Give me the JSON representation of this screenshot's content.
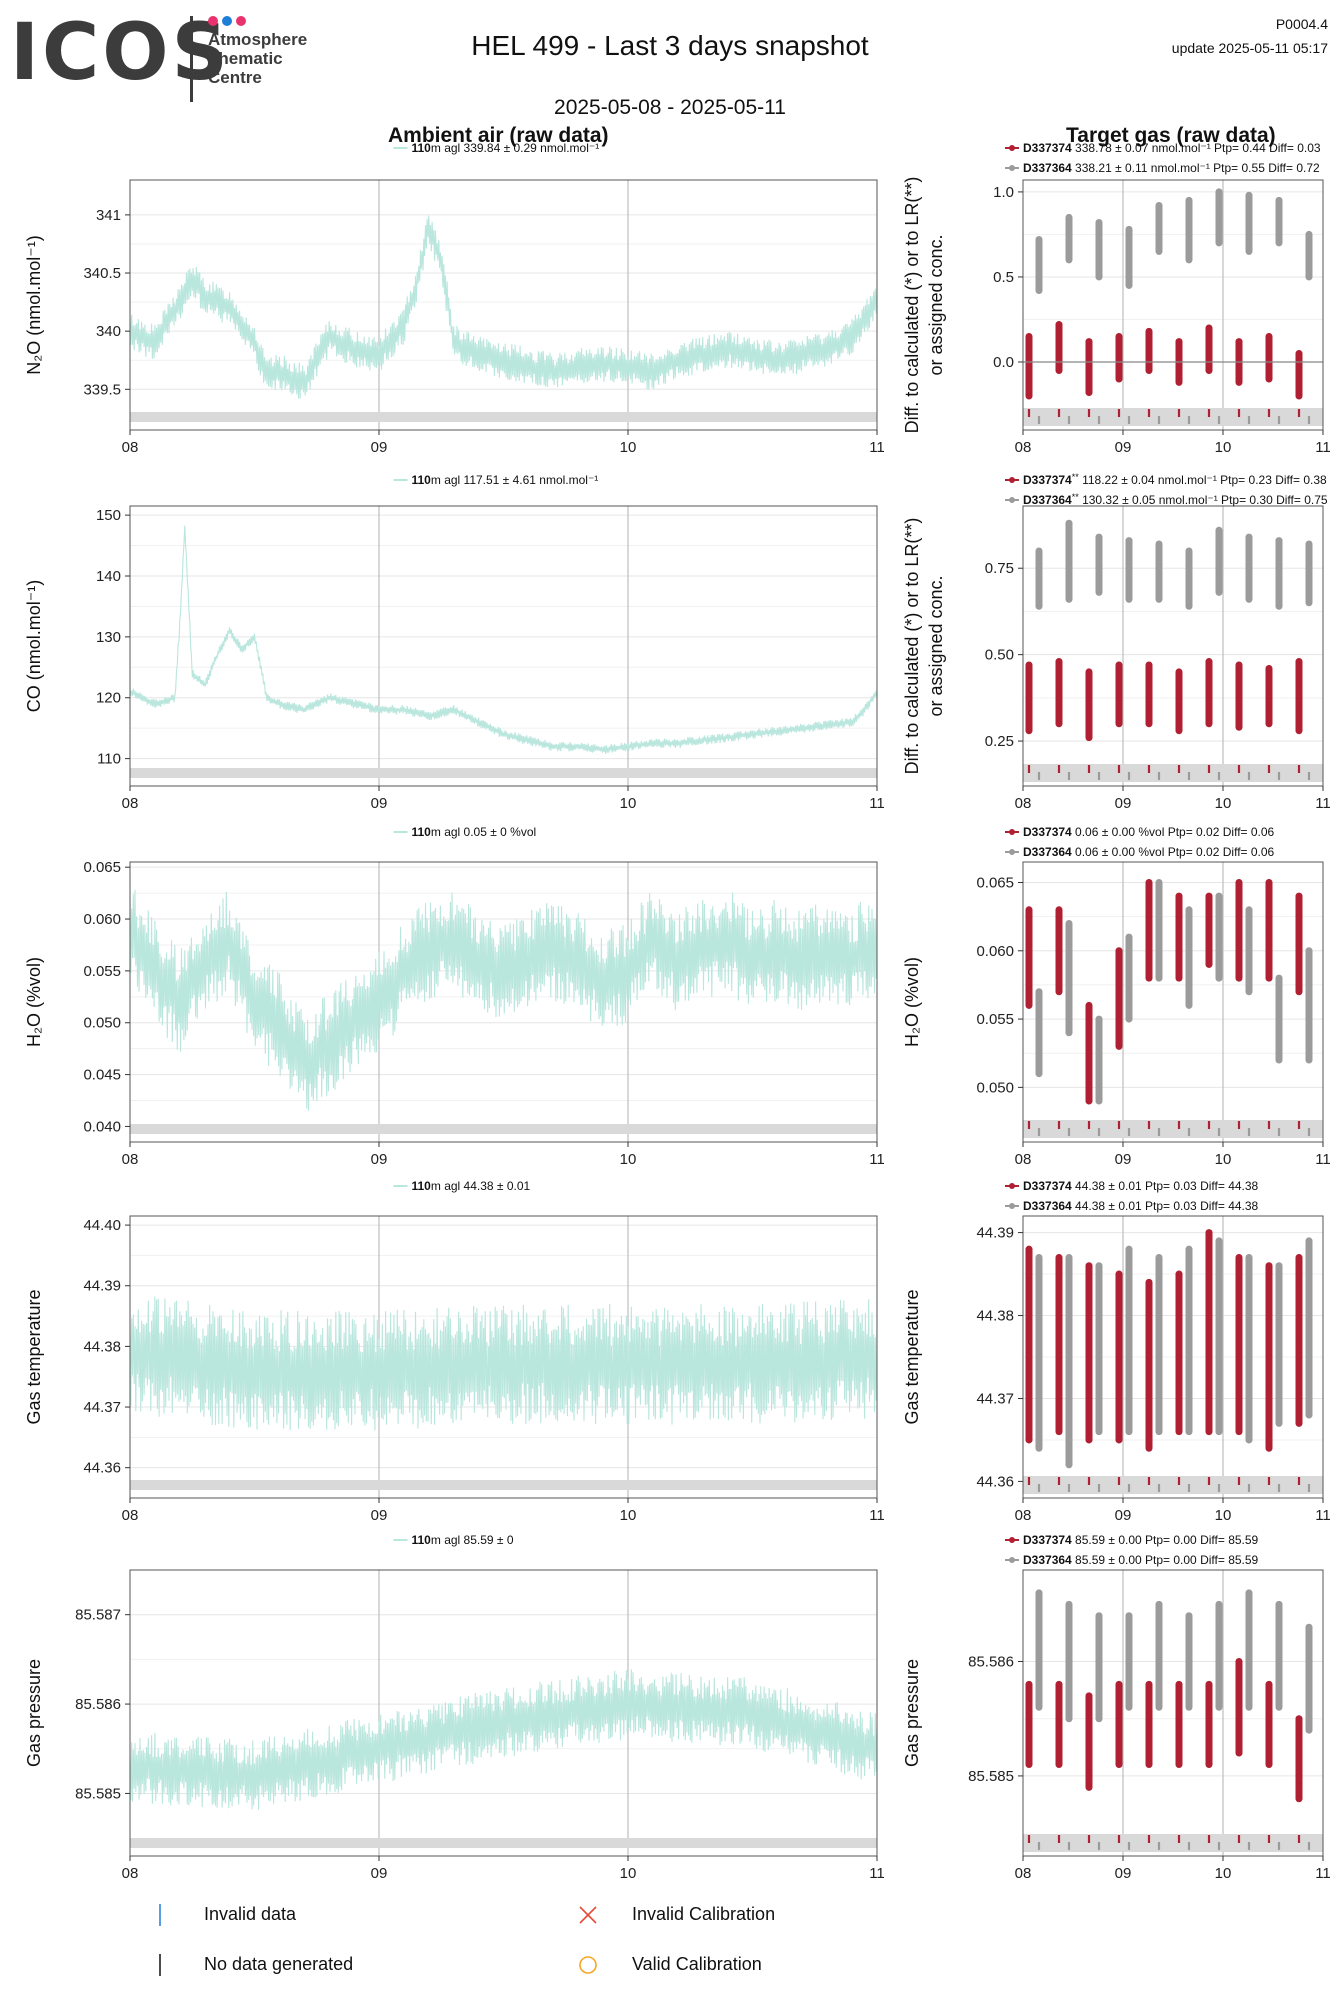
{
  "header": {
    "logo_text": "ICOS",
    "logo_subtitle_lines": [
      "Atmosphere",
      "Thematic",
      "Centre"
    ],
    "logo_dot_colors": [
      "#e8336e",
      "#1f7fd8",
      "#e8336e"
    ],
    "title": "HEL 499 - Last 3 days snapshot",
    "date_range": "2025-05-08 - 2025-05-11",
    "product_code": "P0004.4",
    "update_text": "update  2025-05-11 05:17",
    "left_column_title": "Ambient air (raw data)",
    "right_column_title": "Target gas (raw data)"
  },
  "colors": {
    "ambient": "#b9e6dd",
    "target1": "#b01f32",
    "target2": "#9b9b9b",
    "flag_band": "#d9d9d9",
    "frame": "#555555",
    "grid": "#e6e6e6",
    "vgrid": "#bdbdbd"
  },
  "footer_legend": {
    "invalid_data": "Invalid data",
    "no_data": "No data generated",
    "invalid_cal": "Invalid Calibration",
    "valid_cal": "Valid Calibration"
  },
  "chart_data": [
    {
      "id": "n2o-ambient",
      "type": "line",
      "ylabel": "N₂O (nmol.mol⁻¹)",
      "xlabel": "",
      "xticks": [
        "08",
        "09",
        "10",
        "11"
      ],
      "xlim": [
        0,
        3
      ],
      "ylim": [
        339.15,
        341.3
      ],
      "yticks": [
        339.5,
        340.0,
        340.5,
        341.0
      ],
      "legend": [
        {
          "bold": "110",
          "text": "m agl 339.84 ± 0.29 nmol.mol⁻¹"
        }
      ],
      "series": [
        {
          "name": "110m agl",
          "x": [
            0,
            0.1,
            0.2,
            0.25,
            0.3,
            0.4,
            0.5,
            0.55,
            0.6,
            0.7,
            0.8,
            0.9,
            1.0,
            1.1,
            1.15,
            1.2,
            1.25,
            1.3,
            1.4,
            1.5,
            1.6,
            1.7,
            1.8,
            1.9,
            2.0,
            2.1,
            2.2,
            2.3,
            2.4,
            2.5,
            2.6,
            2.7,
            2.8,
            2.9,
            2.95,
            3.0
          ],
          "y": [
            340.0,
            339.9,
            340.25,
            340.45,
            340.3,
            340.2,
            339.9,
            339.6,
            339.65,
            339.55,
            339.95,
            339.85,
            339.8,
            340.05,
            340.4,
            340.9,
            340.6,
            339.9,
            339.8,
            339.75,
            339.7,
            339.65,
            339.7,
            339.72,
            339.7,
            339.65,
            339.75,
            339.8,
            339.85,
            339.8,
            339.75,
            339.8,
            339.85,
            339.95,
            340.1,
            340.3
          ],
          "amplitude": 0.16
        }
      ]
    },
    {
      "id": "n2o-target",
      "type": "scatter",
      "ylabel": "Diff. to calculated (*) or to LR(**)\nor assigned conc.",
      "xlabel": "",
      "xticks": [
        "08",
        "09",
        "10",
        "11"
      ],
      "xlim": [
        0,
        3
      ],
      "ylim": [
        -0.4,
        1.07
      ],
      "yticks": [
        0.0,
        0.5,
        1.0
      ],
      "ytick_labels": [
        "0.0",
        "0.5",
        "1.0"
      ],
      "zero_line": true,
      "legend": [
        {
          "bold": "D337374",
          "text": " 338.78 ± 0.07 nmol.mol⁻¹ Ptp= 0.44 Diff= 0.03"
        },
        {
          "bold": "D337364",
          "text": " 338.21 ± 0.11 nmol.mol⁻¹ Ptp= 0.55 Diff= 0.72"
        }
      ],
      "series": [
        {
          "name": "D337374",
          "x": [
            0.06,
            0.36,
            0.66,
            0.96,
            1.26,
            1.56,
            1.86,
            2.16,
            2.46,
            2.76
          ],
          "low": [
            -0.2,
            -0.05,
            -0.18,
            -0.1,
            -0.05,
            -0.12,
            -0.05,
            -0.12,
            -0.1,
            -0.2
          ],
          "high": [
            0.15,
            0.22,
            0.12,
            0.15,
            0.18,
            0.12,
            0.2,
            0.12,
            0.15,
            0.05
          ]
        },
        {
          "name": "D337364",
          "x": [
            0.16,
            0.46,
            0.76,
            1.06,
            1.36,
            1.66,
            1.96,
            2.26,
            2.56,
            2.86
          ],
          "low": [
            0.42,
            0.6,
            0.5,
            0.45,
            0.65,
            0.6,
            0.7,
            0.65,
            0.7,
            0.5
          ],
          "high": [
            0.72,
            0.85,
            0.82,
            0.78,
            0.92,
            0.95,
            1.0,
            0.98,
            0.95,
            0.75
          ]
        }
      ]
    },
    {
      "id": "co-ambient",
      "type": "line",
      "ylabel": "CO (nmol.mol⁻¹)",
      "xlabel": "",
      "xticks": [
        "08",
        "09",
        "10",
        "11"
      ],
      "xlim": [
        0,
        3
      ],
      "ylim": [
        105.5,
        151.5
      ],
      "yticks": [
        110,
        120,
        130,
        140,
        150
      ],
      "legend": [
        {
          "bold": "110",
          "text": "m agl 117.51 ± 4.61 nmol.mol⁻¹"
        }
      ],
      "series": [
        {
          "name": "110m agl",
          "x": [
            0,
            0.1,
            0.18,
            0.2,
            0.22,
            0.25,
            0.3,
            0.35,
            0.4,
            0.45,
            0.5,
            0.55,
            0.6,
            0.7,
            0.8,
            0.9,
            1.0,
            1.1,
            1.2,
            1.3,
            1.4,
            1.5,
            1.6,
            1.7,
            1.8,
            1.9,
            2.0,
            2.1,
            2.2,
            2.3,
            2.4,
            2.5,
            2.6,
            2.7,
            2.8,
            2.9,
            2.95,
            3.0
          ],
          "y": [
            121,
            119,
            120,
            132,
            148,
            124,
            122,
            127,
            131,
            128,
            130,
            120,
            119,
            118,
            120,
            119,
            118,
            118,
            117,
            118,
            116,
            114,
            113,
            112,
            112,
            111.5,
            112,
            112.5,
            112.5,
            113,
            113.5,
            114,
            114.5,
            115,
            115.5,
            116,
            118,
            121
          ],
          "amplitude": 0.8
        }
      ]
    },
    {
      "id": "co-target",
      "type": "scatter",
      "ylabel": "Diff. to calculated (*) or to LR(**)\nor assigned conc.",
      "xlabel": "",
      "xticks": [
        "08",
        "09",
        "10",
        "11"
      ],
      "xlim": [
        0,
        3
      ],
      "ylim": [
        0.12,
        0.93
      ],
      "yticks": [
        0.25,
        0.5,
        0.75
      ],
      "ytick_labels": [
        "0.25",
        "0.50",
        "0.75"
      ],
      "legend": [
        {
          "bold": "D337374",
          "sup": "**",
          "text": " 118.22 ± 0.04 nmol.mol⁻¹ Ptp= 0.23 Diff= 0.38"
        },
        {
          "bold": "D337364",
          "sup": "**",
          "text": " 130.32 ± 0.05 nmol.mol⁻¹ Ptp= 0.30 Diff= 0.75"
        }
      ],
      "series": [
        {
          "name": "D337374",
          "x": [
            0.06,
            0.36,
            0.66,
            0.96,
            1.26,
            1.56,
            1.86,
            2.16,
            2.46,
            2.76
          ],
          "low": [
            0.28,
            0.3,
            0.26,
            0.3,
            0.3,
            0.28,
            0.3,
            0.29,
            0.3,
            0.28
          ],
          "high": [
            0.47,
            0.48,
            0.45,
            0.47,
            0.47,
            0.45,
            0.48,
            0.47,
            0.46,
            0.48
          ]
        },
        {
          "name": "D337364",
          "x": [
            0.16,
            0.46,
            0.76,
            1.06,
            1.36,
            1.66,
            1.96,
            2.26,
            2.56,
            2.86
          ],
          "low": [
            0.64,
            0.66,
            0.68,
            0.66,
            0.66,
            0.64,
            0.68,
            0.66,
            0.64,
            0.65
          ],
          "high": [
            0.8,
            0.88,
            0.84,
            0.83,
            0.82,
            0.8,
            0.86,
            0.84,
            0.83,
            0.82
          ]
        }
      ]
    },
    {
      "id": "h2o-ambient",
      "type": "line",
      "ylabel": "H₂O (%vol)",
      "xlabel": "",
      "xticks": [
        "08",
        "09",
        "10",
        "11"
      ],
      "xlim": [
        0,
        3
      ],
      "ylim": [
        0.0385,
        0.0655
      ],
      "yticks": [
        0.04,
        0.045,
        0.05,
        0.055,
        0.06,
        0.065
      ],
      "ytick_labels": [
        "0.040",
        "0.045",
        "0.050",
        "0.055",
        "0.060",
        "0.065"
      ],
      "legend": [
        {
          "bold": "110",
          "text": "m agl 0.05 ± 0 %vol"
        }
      ],
      "series": [
        {
          "name": "110m agl",
          "x": [
            0,
            0.1,
            0.2,
            0.3,
            0.4,
            0.5,
            0.6,
            0.7,
            0.8,
            0.9,
            1.0,
            1.1,
            1.2,
            1.3,
            1.4,
            1.5,
            1.6,
            1.7,
            1.8,
            1.9,
            2.0,
            2.1,
            2.2,
            2.3,
            2.4,
            2.5,
            2.6,
            2.7,
            2.8,
            2.9,
            3.0
          ],
          "y": [
            0.059,
            0.055,
            0.052,
            0.056,
            0.058,
            0.052,
            0.05,
            0.046,
            0.048,
            0.05,
            0.052,
            0.055,
            0.057,
            0.058,
            0.056,
            0.055,
            0.056,
            0.057,
            0.056,
            0.054,
            0.055,
            0.058,
            0.056,
            0.057,
            0.058,
            0.056,
            0.057,
            0.056,
            0.057,
            0.056,
            0.058
          ],
          "amplitude": 0.005
        }
      ]
    },
    {
      "id": "h2o-target",
      "type": "scatter",
      "ylabel": "H₂O (%vol)",
      "xlabel": "",
      "xticks": [
        "08",
        "09",
        "10",
        "11"
      ],
      "xlim": [
        0,
        3
      ],
      "ylim": [
        0.046,
        0.0665
      ],
      "yticks": [
        0.05,
        0.055,
        0.06,
        0.065
      ],
      "ytick_labels": [
        "0.050",
        "0.055",
        "0.060",
        "0.065"
      ],
      "legend": [
        {
          "bold": "D337374",
          "text": " 0.06 ± 0.00 %vol Ptp= 0.02 Diff= 0.06"
        },
        {
          "bold": "D337364",
          "text": " 0.06 ± 0.00 %vol Ptp= 0.02 Diff= 0.06"
        }
      ],
      "series": [
        {
          "name": "D337374",
          "x": [
            0.06,
            0.36,
            0.66,
            0.96,
            1.26,
            1.56,
            1.86,
            2.16,
            2.46,
            2.76
          ],
          "low": [
            0.056,
            0.057,
            0.049,
            0.053,
            0.058,
            0.058,
            0.059,
            0.058,
            0.058,
            0.057
          ],
          "high": [
            0.063,
            0.063,
            0.056,
            0.06,
            0.065,
            0.064,
            0.064,
            0.065,
            0.065,
            0.064
          ]
        },
        {
          "name": "D337364",
          "x": [
            0.16,
            0.46,
            0.76,
            1.06,
            1.36,
            1.66,
            1.96,
            2.26,
            2.56,
            2.86
          ],
          "low": [
            0.051,
            0.054,
            0.049,
            0.055,
            0.058,
            0.056,
            0.058,
            0.057,
            0.052,
            0.052
          ],
          "high": [
            0.057,
            0.062,
            0.055,
            0.061,
            0.065,
            0.063,
            0.064,
            0.063,
            0.058,
            0.06
          ]
        }
      ]
    },
    {
      "id": "temp-ambient",
      "type": "line",
      "ylabel": "Gas temperature",
      "xlabel": "",
      "xticks": [
        "08",
        "09",
        "10",
        "11"
      ],
      "xlim": [
        0,
        3
      ],
      "ylim": [
        44.355,
        44.4015
      ],
      "yticks": [
        44.36,
        44.37,
        44.38,
        44.39,
        44.4
      ],
      "ytick_labels": [
        "44.36",
        "44.37",
        "44.38",
        "44.39",
        "44.40"
      ],
      "legend": [
        {
          "bold": "110",
          "text": "m agl 44.38 ± 0.01"
        }
      ],
      "series": [
        {
          "name": "110m agl",
          "x": [
            0,
            0.5,
            1.0,
            1.5,
            2.0,
            2.5,
            3.0
          ],
          "y": [
            44.379,
            44.376,
            44.376,
            44.377,
            44.377,
            44.377,
            44.378
          ],
          "amplitude": 0.01
        }
      ]
    },
    {
      "id": "temp-target",
      "type": "scatter",
      "ylabel": "Gas temperature",
      "xlabel": "",
      "xticks": [
        "08",
        "09",
        "10",
        "11"
      ],
      "xlim": [
        0,
        3
      ],
      "ylim": [
        44.358,
        44.392
      ],
      "yticks": [
        44.36,
        44.37,
        44.38,
        44.39
      ],
      "ytick_labels": [
        "44.36",
        "44.37",
        "44.38",
        "44.39"
      ],
      "legend": [
        {
          "bold": "D337374",
          "text": " 44.38 ± 0.01  Ptp= 0.03 Diff= 44.38"
        },
        {
          "bold": "D337364",
          "text": " 44.38 ± 0.01  Ptp= 0.03 Diff= 44.38"
        }
      ],
      "series": [
        {
          "name": "D337374",
          "x": [
            0.06,
            0.36,
            0.66,
            0.96,
            1.26,
            1.56,
            1.86,
            2.16,
            2.46,
            2.76
          ],
          "low": [
            44.365,
            44.366,
            44.365,
            44.365,
            44.364,
            44.366,
            44.366,
            44.366,
            44.364,
            44.367
          ],
          "high": [
            44.388,
            44.387,
            44.386,
            44.385,
            44.384,
            44.385,
            44.39,
            44.387,
            44.386,
            44.387
          ]
        },
        {
          "name": "D337364",
          "x": [
            0.16,
            0.46,
            0.76,
            1.06,
            1.36,
            1.66,
            1.96,
            2.26,
            2.56,
            2.86
          ],
          "low": [
            44.364,
            44.362,
            44.366,
            44.366,
            44.366,
            44.366,
            44.366,
            44.365,
            44.367,
            44.368
          ],
          "high": [
            44.387,
            44.387,
            44.386,
            44.388,
            44.387,
            44.388,
            44.389,
            44.387,
            44.386,
            44.389
          ]
        }
      ]
    },
    {
      "id": "pres-ambient",
      "type": "line",
      "ylabel": "Gas pressure",
      "xlabel": "",
      "xticks": [
        "08",
        "09",
        "10",
        "11"
      ],
      "xlim": [
        0,
        3
      ],
      "ylim": [
        85.5843,
        85.5875
      ],
      "yticks": [
        85.585,
        85.586,
        85.587
      ],
      "ytick_labels": [
        "85.585",
        "85.586",
        "85.587"
      ],
      "legend": [
        {
          "bold": "110",
          "text": "m agl 85.59 ± 0"
        }
      ],
      "series": [
        {
          "name": "110m agl",
          "x": [
            0,
            0.5,
            1.0,
            1.5,
            2.0,
            2.5,
            3.0
          ],
          "y": [
            85.5853,
            85.5852,
            85.5855,
            85.5858,
            85.586,
            85.5859,
            85.5855
          ],
          "amplitude": 0.0004
        }
      ]
    },
    {
      "id": "pres-target",
      "type": "scatter",
      "ylabel": "Gas pressure",
      "xlabel": "",
      "xticks": [
        "08",
        "09",
        "10",
        "11"
      ],
      "xlim": [
        0,
        3
      ],
      "ylim": [
        85.5843,
        85.5868
      ],
      "yticks": [
        85.585,
        85.586
      ],
      "ytick_labels": [
        "85.585",
        "85.586"
      ],
      "legend": [
        {
          "bold": "D337374",
          "text": " 85.59 ± 0.00  Ptp= 0.00 Diff= 85.59"
        },
        {
          "bold": "D337364",
          "text": " 85.59 ± 0.00  Ptp= 0.00 Diff= 85.59"
        }
      ],
      "series": [
        {
          "name": "D337374",
          "x": [
            0.06,
            0.36,
            0.66,
            0.96,
            1.26,
            1.56,
            1.86,
            2.16,
            2.46,
            2.76
          ],
          "low": [
            85.5851,
            85.5851,
            85.5849,
            85.5851,
            85.5851,
            85.5851,
            85.5851,
            85.5852,
            85.5851,
            85.5848
          ],
          "high": [
            85.5858,
            85.5858,
            85.5857,
            85.5858,
            85.5858,
            85.5858,
            85.5858,
            85.586,
            85.5858,
            85.5855
          ]
        },
        {
          "name": "D337364",
          "x": [
            0.16,
            0.46,
            0.76,
            1.06,
            1.36,
            1.66,
            1.96,
            2.26,
            2.56,
            2.86
          ],
          "low": [
            85.5856,
            85.5855,
            85.5855,
            85.5856,
            85.5856,
            85.5856,
            85.5856,
            85.5856,
            85.5856,
            85.5854
          ],
          "high": [
            85.5866,
            85.5865,
            85.5864,
            85.5864,
            85.5865,
            85.5864,
            85.5865,
            85.5866,
            85.5865,
            85.5863
          ]
        }
      ]
    }
  ]
}
